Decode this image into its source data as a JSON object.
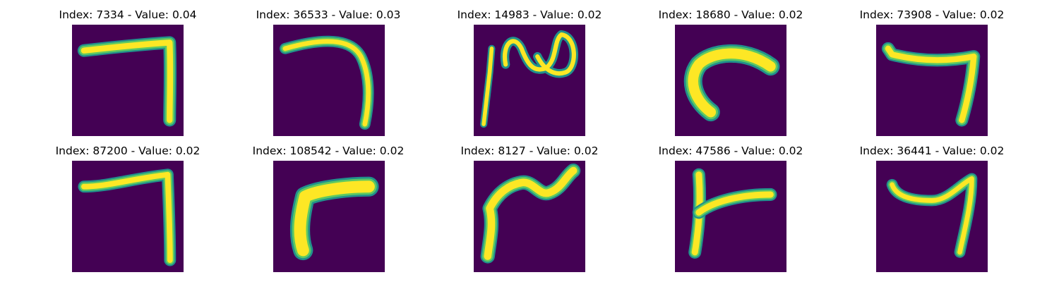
{
  "figure": {
    "rows": 2,
    "cols": 5,
    "colors": {
      "background": "#440154",
      "stroke_core": "#fde725",
      "stroke_mid": "#5ec962",
      "stroke_edge": "#21918c"
    },
    "panels": [
      {
        "index": "7334",
        "value": "0.04",
        "title": "Index: 7334 - Value: 0.04"
      },
      {
        "index": "36533",
        "value": "0.03",
        "title": "Index: 36533 - Value: 0.03"
      },
      {
        "index": "14983",
        "value": "0.02",
        "title": "Index: 14983 - Value: 0.02"
      },
      {
        "index": "18680",
        "value": "0.02",
        "title": "Index: 18680 - Value: 0.02"
      },
      {
        "index": "73908",
        "value": "0.02",
        "title": "Index: 73908 - Value: 0.02"
      },
      {
        "index": "87200",
        "value": "0.02",
        "title": "Index: 87200 - Value: 0.02"
      },
      {
        "index": "108542",
        "value": "0.02",
        "title": "Index: 108542 - Value: 0.02"
      },
      {
        "index": "8127",
        "value": "0.02",
        "title": "Index: 8127 - Value: 0.02"
      },
      {
        "index": "47586",
        "value": "0.02",
        "title": "Index: 47586 - Value: 0.02"
      },
      {
        "index": "36441",
        "value": "0.02",
        "title": "Index: 36441 - Value: 0.02"
      }
    ]
  }
}
